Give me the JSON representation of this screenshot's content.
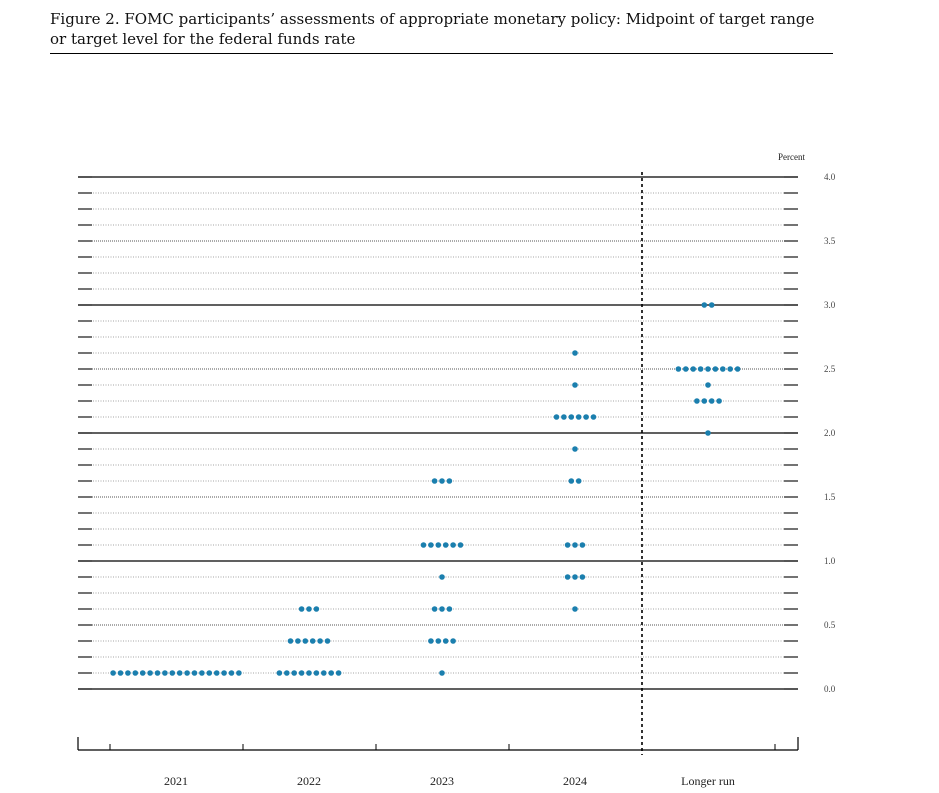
{
  "figure": {
    "title_line1": "Figure 2.  FOMC participants’ assessments of appropriate monetary policy:  Midpoint of target range",
    "title_line2": "or target level for the federal funds rate"
  },
  "colors": {
    "dot": "#1b7fae",
    "grid": "#000000"
  },
  "chart_data": {
    "type": "scatter",
    "subtype": "dot-plot",
    "title": "",
    "ylabel": "Percent",
    "ylim": [
      -0.5,
      4.0
    ],
    "yticks": [
      0.0,
      0.5,
      1.0,
      1.5,
      2.0,
      2.5,
      3.0,
      3.5,
      4.0
    ],
    "ytick_labels": [
      "0.0",
      "0.5",
      "1.0",
      "1.5",
      "2.0",
      "2.5",
      "3.0",
      "3.5",
      "4.0"
    ],
    "categories": [
      "2021",
      "2022",
      "2023",
      "2024",
      "Longer run"
    ],
    "grid": true,
    "series": [
      {
        "category": "2021",
        "points": [
          {
            "rate": 0.125,
            "count": 18
          }
        ]
      },
      {
        "category": "2022",
        "points": [
          {
            "rate": 0.125,
            "count": 9
          },
          {
            "rate": 0.375,
            "count": 6
          },
          {
            "rate": 0.625,
            "count": 3
          }
        ]
      },
      {
        "category": "2023",
        "points": [
          {
            "rate": 0.125,
            "count": 1
          },
          {
            "rate": 0.375,
            "count": 4
          },
          {
            "rate": 0.625,
            "count": 3
          },
          {
            "rate": 0.875,
            "count": 1
          },
          {
            "rate": 1.125,
            "count": 6
          },
          {
            "rate": 1.625,
            "count": 3
          }
        ]
      },
      {
        "category": "2024",
        "points": [
          {
            "rate": 0.625,
            "count": 1
          },
          {
            "rate": 0.875,
            "count": 3
          },
          {
            "rate": 1.125,
            "count": 3
          },
          {
            "rate": 1.625,
            "count": 2
          },
          {
            "rate": 1.875,
            "count": 1
          },
          {
            "rate": 2.125,
            "count": 6
          },
          {
            "rate": 2.375,
            "count": 1
          },
          {
            "rate": 2.625,
            "count": 1
          }
        ]
      },
      {
        "category": "Longer run",
        "points": [
          {
            "rate": 2.0,
            "count": 1
          },
          {
            "rate": 2.25,
            "count": 4
          },
          {
            "rate": 2.375,
            "count": 1
          },
          {
            "rate": 2.5,
            "count": 9
          },
          {
            "rate": 3.0,
            "count": 2
          }
        ]
      }
    ]
  }
}
